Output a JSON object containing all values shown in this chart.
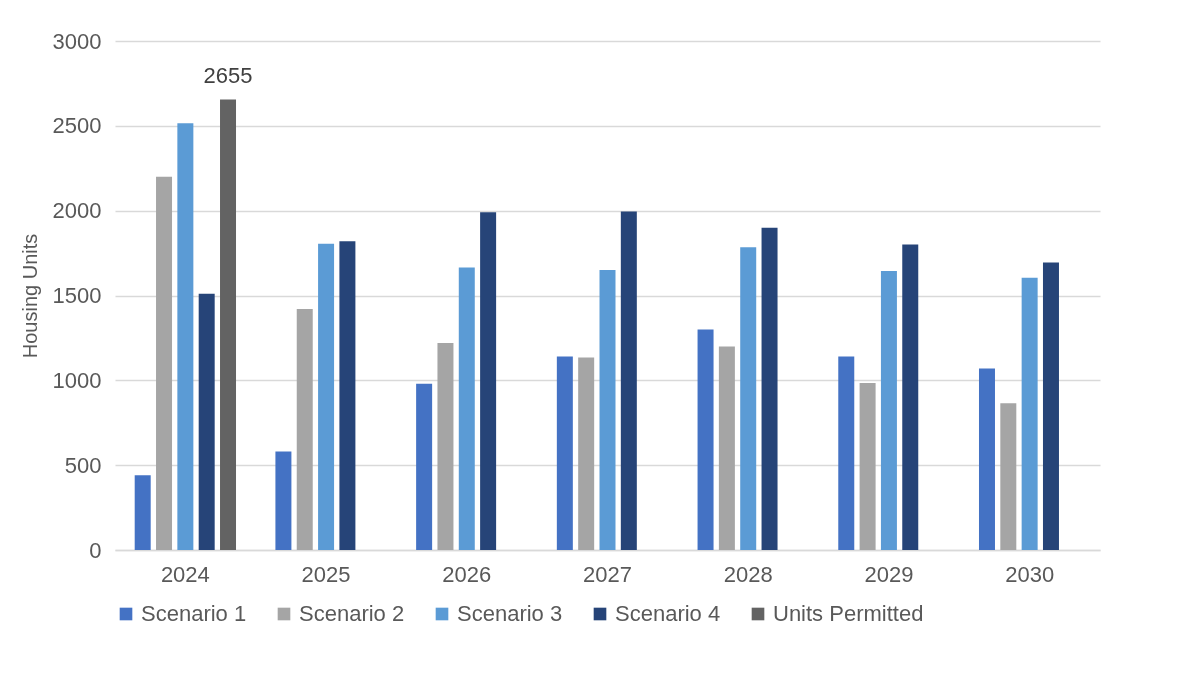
{
  "chart_data": {
    "type": "bar",
    "ylabel": "Housing Units",
    "categories": [
      "2024",
      "2025",
      "2026",
      "2027",
      "2028",
      "2029",
      "2030"
    ],
    "series": [
      {
        "name": "Scenario 1",
        "color": "#4472c4",
        "values": [
          440,
          580,
          980,
          1140,
          1300,
          1140,
          1070
        ]
      },
      {
        "name": "Scenario 2",
        "color": "#a5a5a5",
        "values": [
          2200,
          1420,
          1220,
          1135,
          1200,
          985,
          865
        ]
      },
      {
        "name": "Scenario 3",
        "color": "#5b9bd5",
        "values": [
          2515,
          1805,
          1665,
          1650,
          1785,
          1645,
          1605
        ]
      },
      {
        "name": "Scenario 4",
        "color": "#264478",
        "values": [
          1510,
          1820,
          1990,
          1995,
          1900,
          1800,
          1695
        ]
      },
      {
        "name": "Units Permitted",
        "color": "#636363",
        "values": [
          2655,
          null,
          null,
          null,
          null,
          null,
          null
        ],
        "value_labels": [
          "2655",
          null,
          null,
          null,
          null,
          null,
          null
        ]
      }
    ],
    "ylim": [
      0,
      3000
    ],
    "yticks": [
      0,
      500,
      1000,
      1500,
      2000,
      2500,
      3000
    ],
    "grid": "y",
    "legend": "bottom"
  }
}
